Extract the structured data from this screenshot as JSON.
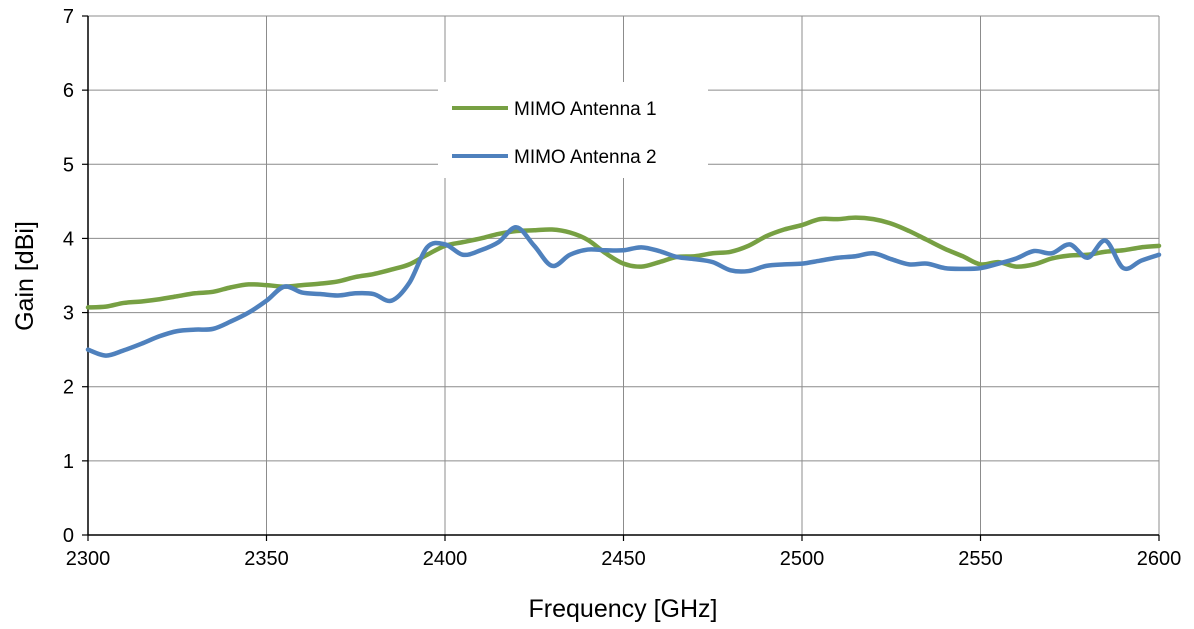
{
  "chart_data": {
    "type": "line",
    "xlabel": "Frequency [GHz]",
    "ylabel": "Gain [dBi]",
    "xlim": [
      2300,
      2600
    ],
    "ylim": [
      0,
      7
    ],
    "xticks": [
      2300,
      2350,
      2400,
      2450,
      2500,
      2550,
      2600
    ],
    "yticks": [
      0,
      1,
      2,
      3,
      4,
      5,
      6,
      7
    ],
    "grid": true,
    "legend_position": "top-center",
    "series": [
      {
        "name": "MIMO Antenna 1",
        "color": "#77A043",
        "x": [
          2300,
          2305,
          2310,
          2315,
          2320,
          2325,
          2330,
          2335,
          2340,
          2345,
          2350,
          2355,
          2360,
          2365,
          2370,
          2375,
          2380,
          2385,
          2390,
          2395,
          2400,
          2405,
          2410,
          2415,
          2420,
          2425,
          2430,
          2435,
          2440,
          2445,
          2450,
          2455,
          2460,
          2465,
          2470,
          2475,
          2480,
          2485,
          2490,
          2495,
          2500,
          2505,
          2510,
          2515,
          2520,
          2525,
          2530,
          2535,
          2540,
          2545,
          2550,
          2555,
          2560,
          2565,
          2570,
          2575,
          2580,
          2585,
          2590,
          2595,
          2600
        ],
        "values": [
          3.07,
          3.08,
          3.13,
          3.15,
          3.18,
          3.22,
          3.26,
          3.28,
          3.34,
          3.38,
          3.37,
          3.35,
          3.37,
          3.39,
          3.42,
          3.48,
          3.52,
          3.58,
          3.65,
          3.78,
          3.9,
          3.95,
          4.0,
          4.06,
          4.1,
          4.11,
          4.12,
          4.08,
          3.98,
          3.8,
          3.66,
          3.62,
          3.68,
          3.75,
          3.76,
          3.8,
          3.82,
          3.9,
          4.03,
          4.12,
          4.18,
          4.26,
          4.26,
          4.28,
          4.26,
          4.2,
          4.1,
          3.98,
          3.86,
          3.76,
          3.65,
          3.68,
          3.62,
          3.65,
          3.73,
          3.77,
          3.78,
          3.82,
          3.84,
          3.88,
          3.9
        ]
      },
      {
        "name": "MIMO Antenna 2",
        "color": "#4F81BD",
        "x": [
          2300,
          2305,
          2310,
          2315,
          2320,
          2325,
          2330,
          2335,
          2340,
          2345,
          2350,
          2355,
          2360,
          2365,
          2370,
          2375,
          2380,
          2385,
          2390,
          2395,
          2400,
          2405,
          2410,
          2415,
          2420,
          2425,
          2430,
          2435,
          2440,
          2445,
          2450,
          2455,
          2460,
          2465,
          2470,
          2475,
          2480,
          2485,
          2490,
          2495,
          2500,
          2505,
          2510,
          2515,
          2520,
          2525,
          2530,
          2535,
          2540,
          2545,
          2550,
          2555,
          2560,
          2565,
          2570,
          2575,
          2580,
          2585,
          2590,
          2595,
          2600
        ],
        "values": [
          2.5,
          2.42,
          2.49,
          2.58,
          2.68,
          2.75,
          2.77,
          2.78,
          2.88,
          3.0,
          3.16,
          3.35,
          3.27,
          3.25,
          3.23,
          3.26,
          3.25,
          3.16,
          3.4,
          3.88,
          3.92,
          3.78,
          3.84,
          3.95,
          4.15,
          3.9,
          3.63,
          3.78,
          3.85,
          3.84,
          3.84,
          3.88,
          3.83,
          3.75,
          3.72,
          3.68,
          3.57,
          3.56,
          3.63,
          3.65,
          3.66,
          3.7,
          3.74,
          3.76,
          3.8,
          3.72,
          3.65,
          3.66,
          3.6,
          3.59,
          3.6,
          3.66,
          3.73,
          3.83,
          3.8,
          3.92,
          3.74,
          3.97,
          3.6,
          3.7,
          3.78
        ]
      }
    ]
  }
}
